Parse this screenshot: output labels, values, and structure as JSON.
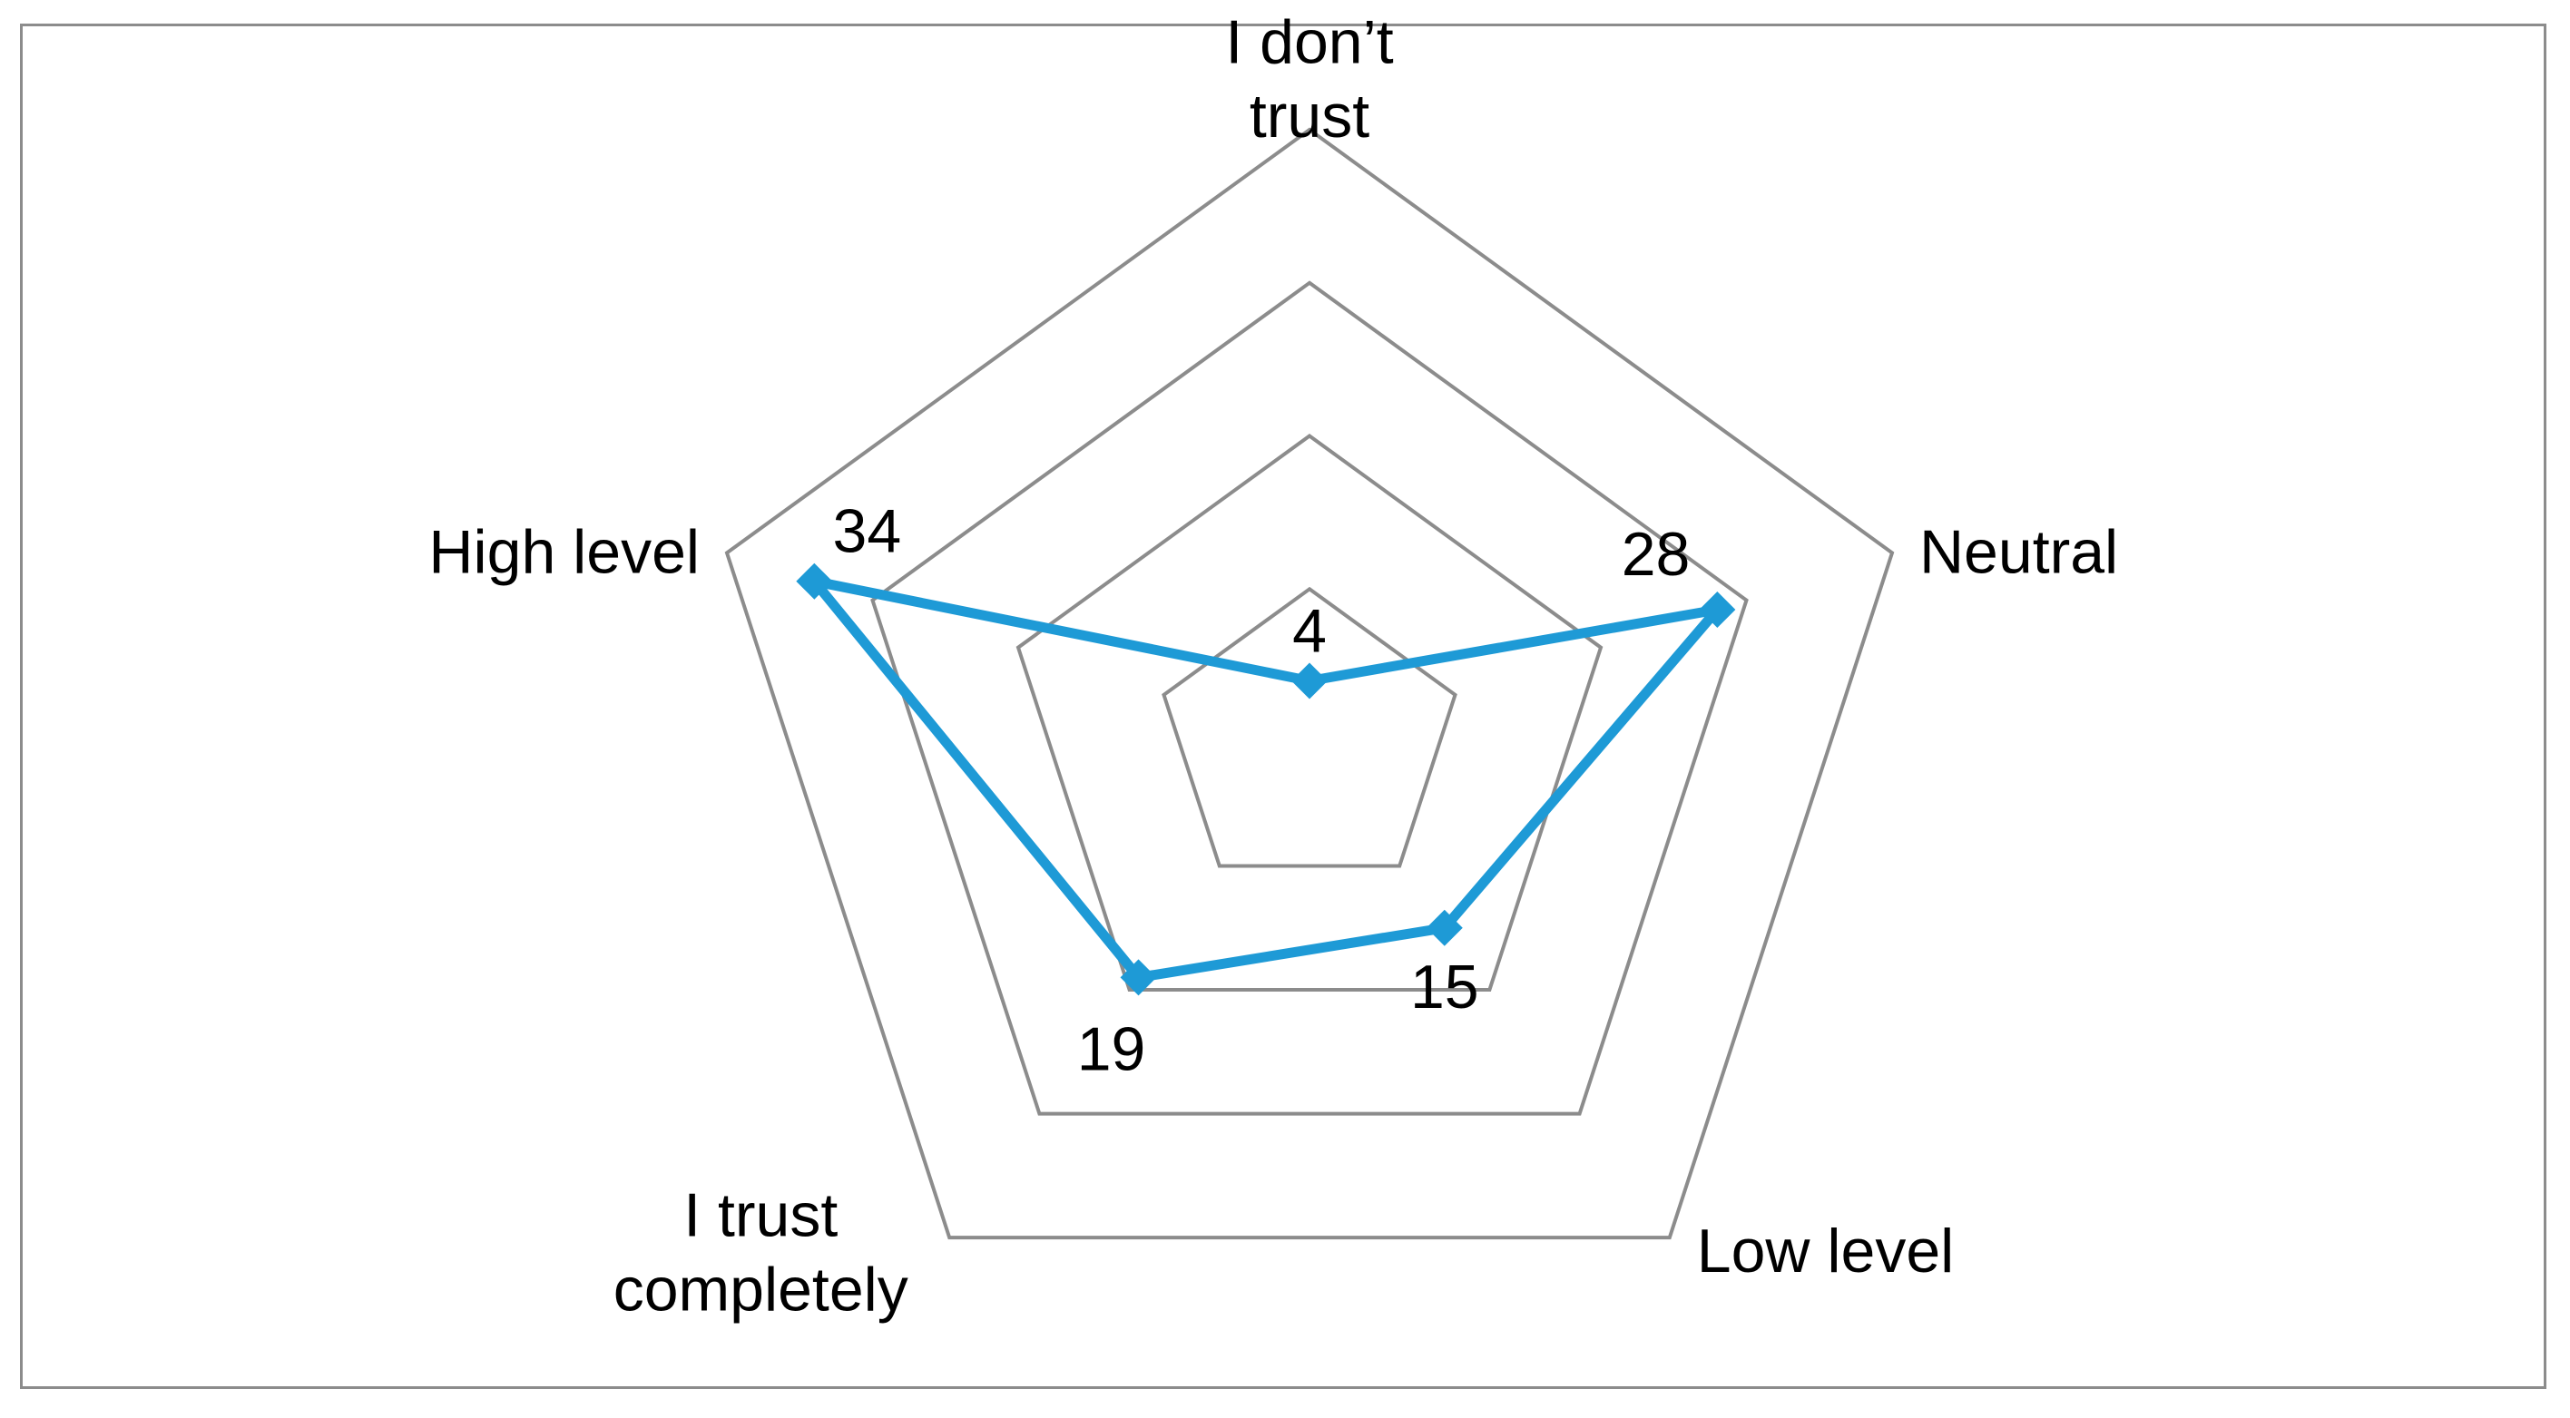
{
  "chart_data": {
    "type": "radar",
    "categories": [
      "I don’t trust",
      "Neutral",
      "Low level",
      "I trust completely",
      "High level"
    ],
    "series": [
      {
        "values": [
          4,
          28,
          15,
          19,
          34
        ]
      }
    ],
    "data_labels": [
      "4",
      "28",
      "15",
      "19",
      "34"
    ],
    "rlim": [
      0,
      40
    ],
    "r_ticks": [
      10,
      20,
      30,
      40
    ],
    "grid": true,
    "legend": "none",
    "title": "",
    "colors": {
      "series": "#1e9ad6",
      "grid": "#8c8c8c",
      "frame": "#8c8c8c"
    }
  }
}
